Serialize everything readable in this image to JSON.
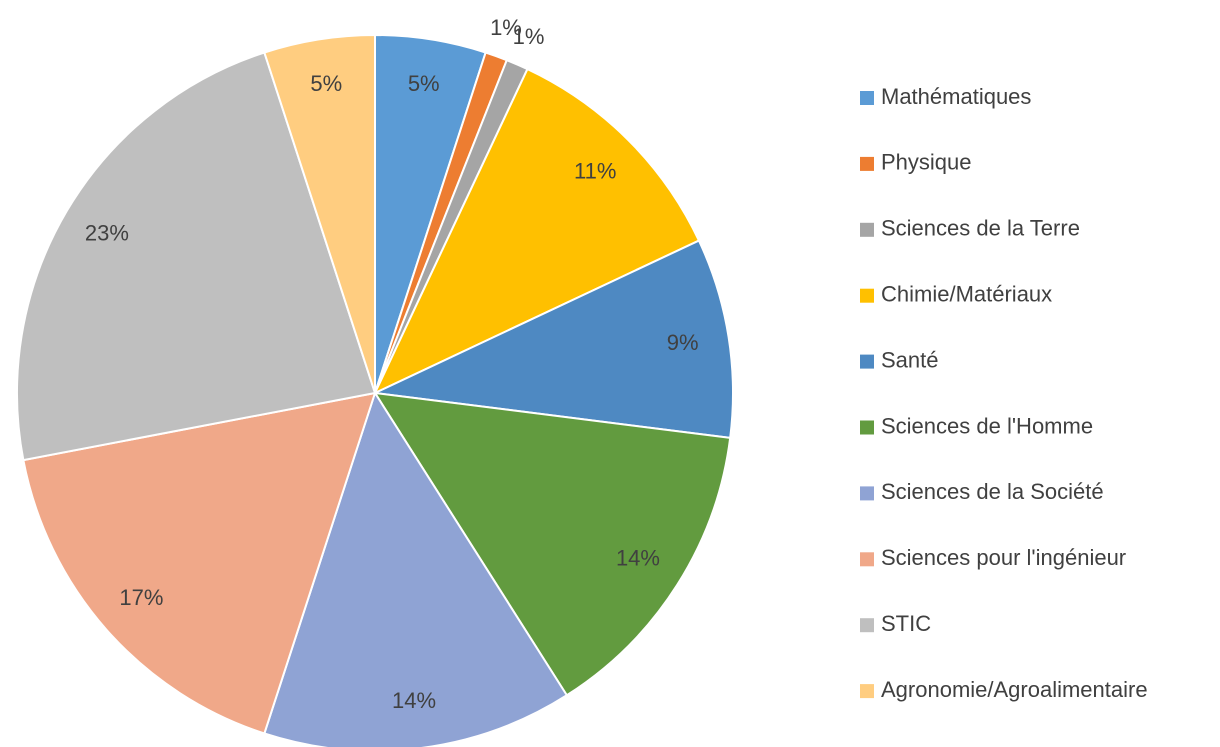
{
  "chart_data": {
    "type": "pie",
    "categories": [
      "Mathématiques",
      "Physique",
      "Sciences de la Terre",
      "Chimie/Matériaux",
      "Santé",
      "Sciences de l'Homme",
      "Sciences de la Société",
      "Sciences pour l'ingénieur",
      "STIC",
      "Agronomie/Agroalimentaire"
    ],
    "values": [
      5,
      1,
      1,
      11,
      9,
      14,
      14,
      17,
      23,
      5
    ],
    "value_labels": [
      "5%",
      "1%",
      "1%",
      "11%",
      "9%",
      "14%",
      "14%",
      "17%",
      "23%",
      "5%"
    ],
    "colors": [
      "#5b9bd5",
      "#ed7d31",
      "#a5a5a5",
      "#ffc000",
      "#4e89c2",
      "#629b3f",
      "#8fa3d4",
      "#f0a889",
      "#bfbfbf",
      "#ffcd80"
    ],
    "legend": "right"
  }
}
